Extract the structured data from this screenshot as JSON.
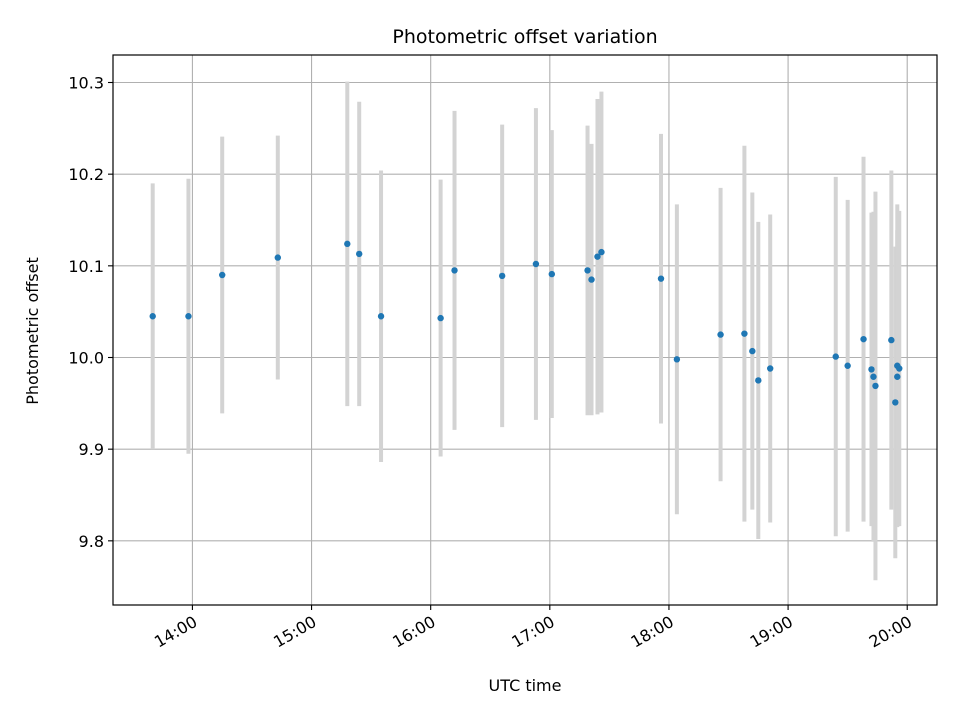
{
  "chart_data": {
    "type": "scatter",
    "title": "Photometric offset variation",
    "xlabel": "UTC time",
    "ylabel": "Photometric offset",
    "grid": true,
    "xlim": [
      "13:20",
      "20:15"
    ],
    "ylim": [
      9.73,
      10.33
    ],
    "x_ticks": [
      "14:00",
      "15:00",
      "16:00",
      "17:00",
      "18:00",
      "19:00",
      "20:00"
    ],
    "y_ticks": [
      "9.8",
      "9.9",
      "10.0",
      "10.1",
      "10.2",
      "10.3"
    ],
    "point_color": "#1f77b4",
    "errorbar_color": "#d3d3d3",
    "points": [
      {
        "x": "13:40",
        "y": 10.045,
        "err": 0.145
      },
      {
        "x": "13:58",
        "y": 10.045,
        "err": 0.15
      },
      {
        "x": "14:15",
        "y": 10.09,
        "err": 0.151
      },
      {
        "x": "14:43",
        "y": 10.109,
        "err": 0.133
      },
      {
        "x": "15:18",
        "y": 10.124,
        "err": 0.177
      },
      {
        "x": "15:24",
        "y": 10.113,
        "err": 0.166
      },
      {
        "x": "15:35",
        "y": 10.045,
        "err": 0.159
      },
      {
        "x": "16:05",
        "y": 10.043,
        "err": 0.151
      },
      {
        "x": "16:12",
        "y": 10.095,
        "err": 0.174
      },
      {
        "x": "16:36",
        "y": 10.089,
        "err": 0.165
      },
      {
        "x": "16:53",
        "y": 10.102,
        "err": 0.17
      },
      {
        "x": "17:01",
        "y": 10.091,
        "err": 0.157
      },
      {
        "x": "17:19",
        "y": 10.095,
        "err": 0.158
      },
      {
        "x": "17:21",
        "y": 10.085,
        "err": 0.148
      },
      {
        "x": "17:24",
        "y": 10.11,
        "err": 0.172
      },
      {
        "x": "17:26",
        "y": 10.115,
        "err": 0.175
      },
      {
        "x": "17:56",
        "y": 10.086,
        "err": 0.158
      },
      {
        "x": "18:04",
        "y": 9.998,
        "err": 0.169
      },
      {
        "x": "18:26",
        "y": 10.025,
        "err": 0.16
      },
      {
        "x": "18:38",
        "y": 10.026,
        "err": 0.205
      },
      {
        "x": "18:42",
        "y": 10.007,
        "err": 0.173
      },
      {
        "x": "18:45",
        "y": 9.975,
        "err": 0.173
      },
      {
        "x": "18:51",
        "y": 9.988,
        "err": 0.168
      },
      {
        "x": "19:24",
        "y": 10.001,
        "err": 0.196
      },
      {
        "x": "19:30",
        "y": 9.991,
        "err": 0.181
      },
      {
        "x": "19:38",
        "y": 10.02,
        "err": 0.199
      },
      {
        "x": "19:42",
        "y": 9.987,
        "err": 0.171
      },
      {
        "x": "19:43",
        "y": 9.979,
        "err": 0.18
      },
      {
        "x": "19:44",
        "y": 9.969,
        "err": 0.212
      },
      {
        "x": "19:52",
        "y": 10.019,
        "err": 0.185
      },
      {
        "x": "19:54",
        "y": 9.951,
        "err": 0.17
      },
      {
        "x": "19:55",
        "y": 9.991,
        "err": 0.176
      },
      {
        "x": "19:55",
        "y": 9.979,
        "err": 0.16
      },
      {
        "x": "19:56",
        "y": 9.988,
        "err": 0.172
      }
    ]
  }
}
